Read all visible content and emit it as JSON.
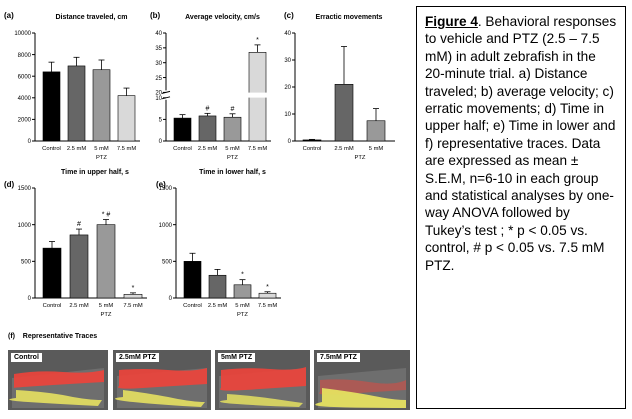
{
  "figure": {
    "caption_label": "Figure 4",
    "caption_text": ". Behavioral responses to vehicle and PTZ (2.5 – 7.5 mM) in adult zebrafish in the 20-minute trial. a) Distance traveled; b) average velocity; c) erratic movements; d) Time in upper half; e) Time in lower and f) representative traces.  Data are expressed as mean ± S.E.M, n=6-10 in each group and statistical analyses by one-way ANOVA followed by Tukey’s test ; * p < 0.05 vs. control, # p < 0.05 vs. 7.5 mM PTZ."
  },
  "traces": {
    "panel_letter": "(f)",
    "title": "Representative Traces",
    "items": [
      {
        "label": "Control"
      },
      {
        "label": "2.5mM PTZ"
      },
      {
        "label": "5mM PTZ"
      },
      {
        "label": "7.5mM PTZ"
      }
    ]
  },
  "colors": {
    "control": "#000000",
    "ptz_2_5": "#666666",
    "ptz_5": "#999999",
    "ptz_7_5": "#d9d9d9",
    "trace_upper": "#e8453c",
    "trace_lower": "#e5e060"
  },
  "chart_data": [
    {
      "id": "a",
      "panel_letter": "(a)",
      "type": "bar",
      "title": "Distance traveled, cm",
      "categories": [
        "Control",
        "2.5 mM",
        "5 mM",
        "7.5 mM"
      ],
      "group_label": "PTZ",
      "values": [
        6400,
        6950,
        6600,
        4200
      ],
      "errors": [
        900,
        800,
        900,
        700
      ],
      "annotations": [
        "",
        "",
        "",
        ""
      ],
      "ylim": [
        0,
        10000
      ],
      "yticks": [
        "0",
        "2000",
        "4000",
        "6000",
        "8000",
        "10000"
      ],
      "ytick_values": [
        0,
        2000,
        4000,
        6000,
        8000,
        10000
      ]
    },
    {
      "id": "b",
      "panel_letter": "(b)",
      "type": "bar",
      "title": "Average velocity, cm/s",
      "categories": [
        "Control",
        "2.5 mM",
        "5 mM",
        "7.5 mM"
      ],
      "group_label": "PTZ",
      "values": [
        5.3,
        5.8,
        5.5,
        33.5
      ],
      "errors": [
        0.8,
        0.6,
        0.8,
        2.5
      ],
      "annotations": [
        "",
        "#",
        "#",
        "*"
      ],
      "axis_break": [
        10,
        20
      ],
      "ylim": [
        0,
        40
      ],
      "yticks": [
        "0",
        "5",
        "10",
        "20",
        "25",
        "30",
        "35",
        "40"
      ],
      "ytick_values": [
        0,
        5,
        10,
        20,
        25,
        30,
        35,
        40
      ]
    },
    {
      "id": "c",
      "panel_letter": "(c)",
      "type": "bar",
      "title": "Erractic movements",
      "categories": [
        "Control",
        "2.5 mM",
        "5 mM"
      ],
      "group_label": "PTZ",
      "values": [
        0.4,
        21,
        7.5
      ],
      "errors": [
        0.2,
        14,
        4.5
      ],
      "annotations": [
        "",
        "",
        ""
      ],
      "ylim": [
        0,
        40
      ],
      "yticks": [
        "0",
        "10",
        "20",
        "30",
        "40"
      ],
      "ytick_values": [
        0,
        10,
        20,
        30,
        40
      ]
    },
    {
      "id": "d",
      "panel_letter": "(d)",
      "type": "bar",
      "title": "Time in upper half, s",
      "categories": [
        "Control",
        "2.5 mM",
        "5 mM",
        "7.5 mM"
      ],
      "group_label": "PTZ",
      "values": [
        680,
        860,
        1000,
        50
      ],
      "errors": [
        90,
        80,
        70,
        20
      ],
      "annotations": [
        "",
        "#",
        "* #",
        "*"
      ],
      "ylim": [
        0,
        1500
      ],
      "yticks": [
        "0",
        "500",
        "1000",
        "1500"
      ],
      "ytick_values": [
        0,
        500,
        1000,
        1500
      ]
    },
    {
      "id": "e",
      "panel_letter": "(e)",
      "type": "bar",
      "title": "Time in lower half, s",
      "categories": [
        "Control",
        "2.5 mM",
        "5 mM",
        "7.5 mM"
      ],
      "group_label": "PTZ",
      "values": [
        500,
        310,
        180,
        65
      ],
      "errors": [
        110,
        80,
        70,
        20
      ],
      "annotations": [
        "",
        "",
        "*",
        "*"
      ],
      "ylim": [
        0,
        1500
      ],
      "yticks": [
        "0",
        "500",
        "1000",
        "1500"
      ],
      "ytick_values": [
        0,
        500,
        1000,
        1500
      ]
    }
  ]
}
